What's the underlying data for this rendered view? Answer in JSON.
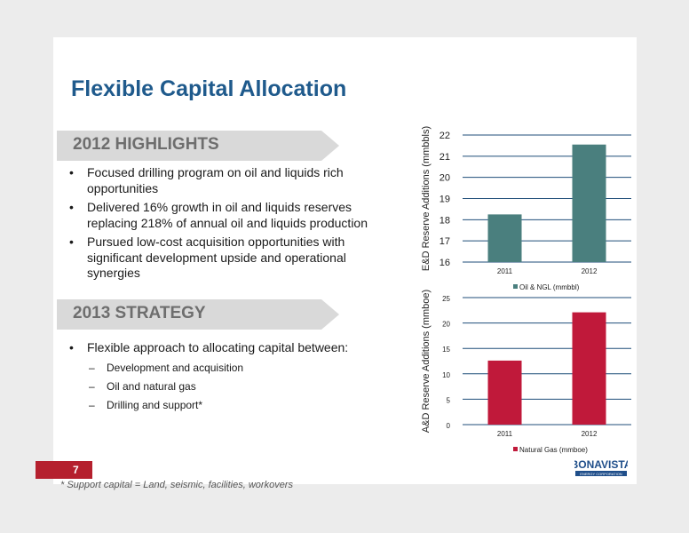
{
  "title": "Flexible Capital Allocation",
  "highlights": {
    "heading": "2012 HIGHLIGHTS",
    "bullets": [
      "Focused drilling program on oil and liquids rich opportunities",
      "Delivered 16% growth in oil and liquids reserves replacing 218% of annual oil and liquids production",
      "Pursued low-cost acquisition opportunities with significant development upside and operational synergies"
    ]
  },
  "strategy": {
    "heading": "2013 STRATEGY",
    "bullet": "Flexible approach to allocating capital between:",
    "sub_items": [
      "Development and acquisition",
      "Oil and natural gas",
      "Drilling and support*"
    ]
  },
  "page_number": "7",
  "footnote": "* Support capital = Land, seismic, facilities, workovers",
  "logo": {
    "name": "BONAVISTA",
    "tagline": "ENERGY CORPORATION"
  },
  "chart_data": [
    {
      "type": "bar",
      "categories": [
        "2011",
        "2012"
      ],
      "series": [
        {
          "name": "Oil & NGL (mmbbl)",
          "values": [
            18.25,
            21.55
          ]
        }
      ],
      "ylabel": "E&D Reserve Additions (mmbbls)",
      "ylim": [
        16,
        22
      ],
      "yticks": [
        16,
        17,
        18,
        19,
        20,
        21,
        22
      ],
      "grid": true,
      "legend": "bottom",
      "color": "#4a7f7e"
    },
    {
      "type": "bar",
      "categories": [
        "2011",
        "2012"
      ],
      "series": [
        {
          "name": "Natural Gas (mmboe)",
          "values": [
            12.6,
            22.1
          ]
        }
      ],
      "ylabel": "A&D Reserve Additions (mmboe)",
      "ylim": [
        0,
        25
      ],
      "yticks": [
        0,
        5,
        10,
        15,
        20,
        25
      ],
      "grid": true,
      "legend": "bottom",
      "color": "#c0193a"
    }
  ]
}
